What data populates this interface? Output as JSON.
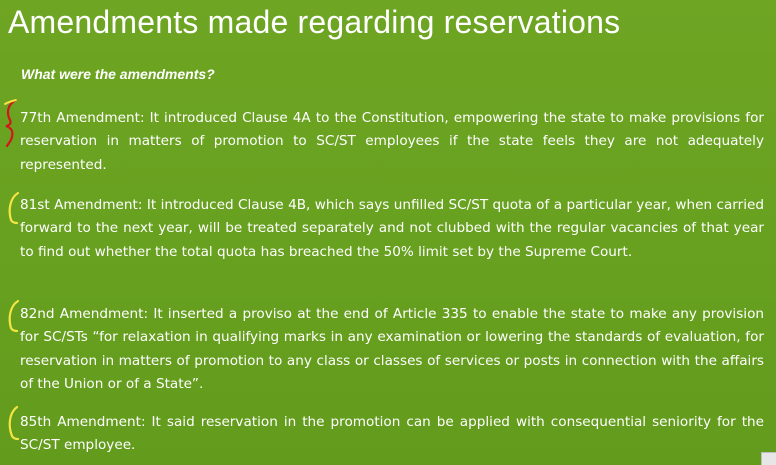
{
  "slide": {
    "title": "Amendments made regarding reservations",
    "subtitle": "What were the amendments?",
    "paragraphs": [
      {
        "text": "77th Amendment: It introduced Clause 4A to the Constitution, empowering the state to make provisions for reservation in matters of promotion to SC/ST employees if the state feels they are not adequately represented."
      },
      {
        "text": "81st Amendment: It introduced Clause 4B, which says unfilled SC/ST quota of a particular year, when carried forward to the next year, will be treated separately and not clubbed with the regular vacancies of that year to find out whether the total quota has breached the 50% limit set by the Supreme Court."
      },
      {
        "text": "82nd Amendment: It inserted a proviso at the end of Article 335 to enable the state to make any provision for SC/STs “for relaxation in qualifying marks in any examination or lowering the standards of evaluation, for reservation in matters of promotion to any class or classes of services or posts in connection with the affairs of the Union or of a State”."
      },
      {
        "text": "85th Amendment: It said reservation in the promotion can be applied with consequential seniority for the SC/ST employee."
      }
    ],
    "annotation_colors": {
      "first": "#d4161a",
      "others": "#f3e642"
    },
    "background": "#6aa121"
  }
}
